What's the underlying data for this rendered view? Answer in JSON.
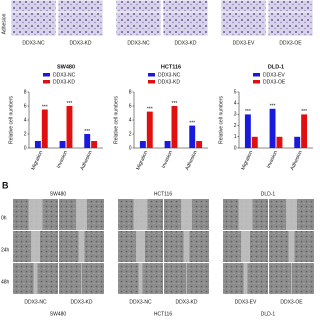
{
  "panel_a": {
    "row_label": "Adhesion",
    "image_labels": [
      "DDX3-NC",
      "DDX3-KD",
      "DDX3-NC",
      "DDX3-KD",
      "DDX3-EV",
      "DDX3-OE"
    ]
  },
  "chart_data": [
    {
      "type": "bar",
      "title": "SW480",
      "y_label": "Relative cell numbers",
      "categories": [
        "Migration",
        "Invasion",
        "Adhesion"
      ],
      "series": [
        {
          "name": "DDX3-NC",
          "color": "#1a1adf",
          "values": [
            1,
            1,
            2
          ]
        },
        {
          "name": "DDX3-KD",
          "color": "#e01010",
          "values": [
            5.5,
            6,
            1
          ]
        }
      ],
      "significance": [
        "***",
        "***",
        "***"
      ],
      "ylim": [
        0,
        8
      ],
      "yticks": [
        0,
        2,
        4,
        6,
        8
      ]
    },
    {
      "type": "bar",
      "title": "HCT116",
      "y_label": "Relative cell numbers",
      "categories": [
        "Migration",
        "Invasion",
        "Adhesion"
      ],
      "series": [
        {
          "name": "DDX3-NC",
          "color": "#1a1adf",
          "values": [
            1,
            1,
            3.2
          ]
        },
        {
          "name": "DDX3-KD",
          "color": "#e01010",
          "values": [
            5.2,
            6,
            1
          ]
        }
      ],
      "significance": [
        "***",
        "***",
        "***"
      ],
      "ylim": [
        0,
        8
      ],
      "yticks": [
        0,
        2,
        4,
        6,
        8
      ]
    },
    {
      "type": "bar",
      "title": "DLD-1",
      "y_label": "Relative cell numbers",
      "categories": [
        "Migration",
        "Invasion",
        "Adhesion"
      ],
      "series": [
        {
          "name": "DDX3-EV",
          "color": "#1a1adf",
          "values": [
            3,
            3.5,
            1
          ]
        },
        {
          "name": "DDX3-OE",
          "color": "#e01010",
          "values": [
            1,
            1,
            3
          ]
        }
      ],
      "significance": [
        "***",
        "***",
        "***"
      ],
      "ylim": [
        0,
        5
      ],
      "yticks": [
        0,
        1,
        2,
        3,
        4,
        5
      ]
    }
  ],
  "panel_b": {
    "label": "B",
    "groups": [
      "SW480",
      "HCT116",
      "DLD-1"
    ],
    "rows": [
      "0h",
      "24h",
      "48h"
    ],
    "image_labels": [
      "DDX3-NC",
      "DDX3-KD",
      "DDX3-NC",
      "DDX3-KD",
      "DDX3-EV",
      "DDX3-OE"
    ],
    "footer": [
      "SW480",
      "HCT116",
      "DLD-1"
    ]
  }
}
